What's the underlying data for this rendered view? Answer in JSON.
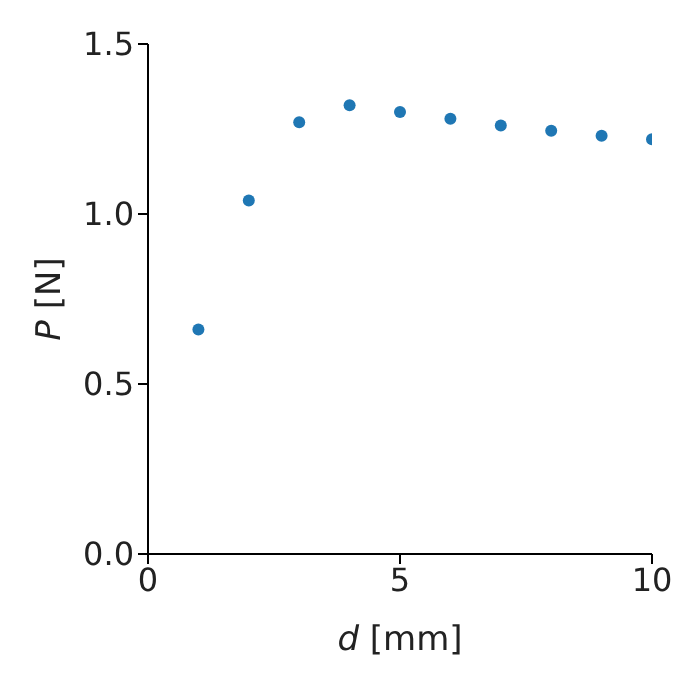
{
  "chart_data": {
    "type": "scatter",
    "xlabel": "d [mm]",
    "ylabel": "P [N]",
    "x": [
      1,
      2,
      3,
      4,
      5,
      6,
      7,
      8,
      9,
      10
    ],
    "series": [
      {
        "color": "#1f77b4",
        "values": [
          0.66,
          1.04,
          1.27,
          1.32,
          1.3,
          1.28,
          1.26,
          1.245,
          1.23,
          1.22
        ]
      }
    ],
    "xlim": [
      0,
      10
    ],
    "xticks": [
      0,
      5,
      10
    ],
    "ylim": [
      0,
      1.5
    ],
    "yticks": [
      {
        "value": 0,
        "label": "0.0"
      },
      {
        "value": 0.5,
        "label": "0.5"
      },
      {
        "value": 1,
        "label": "1.0"
      },
      {
        "value": 1.5,
        "label": "1.5"
      }
    ],
    "grid": false,
    "legend": false,
    "marker": "circle"
  }
}
